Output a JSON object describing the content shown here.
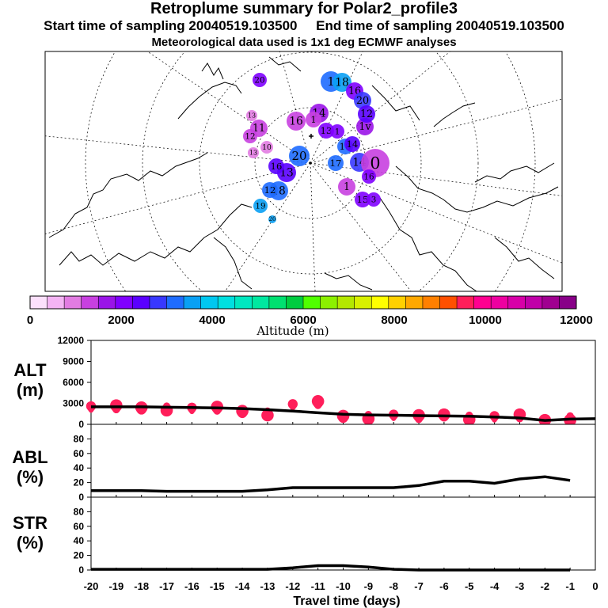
{
  "header": {
    "title": "Retroplume summary for Polar2_profile3",
    "start_label": "Start time of sampling 20040519.103500",
    "end_label": "End time of sampling 20040519.103500",
    "met_label": "Meteorological data used is 1x1 deg ECMWF analyses"
  },
  "colorbar": {
    "ticks": [
      "0",
      "2000",
      "4000",
      "6000",
      "8000",
      "10000",
      "12000"
    ],
    "label": "Altitude (m)",
    "colors": [
      "#fce0fc",
      "#f4b4f4",
      "#e27ce2",
      "#c840e0",
      "#9a14e8",
      "#8000ff",
      "#5a00ff",
      "#3838ff",
      "#1e6cff",
      "#0aa0f4",
      "#00c8f0",
      "#00e0e0",
      "#00e8c0",
      "#00e8a0",
      "#00e070",
      "#00cc40",
      "#50ff00",
      "#8cf000",
      "#b4e800",
      "#d8f000",
      "#ffff00",
      "#ffd000",
      "#ffa800",
      "#ff8000",
      "#ff5000",
      "#ff1e5a",
      "#ff0090",
      "#ee00a0",
      "#d800a8",
      "#c000a8",
      "#a00090",
      "#880088"
    ]
  },
  "map": {
    "markers": [
      {
        "label": "1",
        "alt": 3000
      },
      {
        "label": "18",
        "alt": 3500
      },
      {
        "label": "16",
        "alt": 2200
      },
      {
        "label": "20",
        "alt": 2700
      },
      {
        "label": "20",
        "alt": 2000
      },
      {
        "label": "14",
        "alt": 1500
      },
      {
        "label": "1v",
        "alt": 1800
      },
      {
        "label": "12",
        "alt": 2400
      },
      {
        "label": "16",
        "alt": 1200
      },
      {
        "label": "1",
        "alt": 1300
      },
      {
        "label": "11",
        "alt": 1400
      },
      {
        "label": "12",
        "alt": 1200
      },
      {
        "label": "13",
        "alt": 900
      },
      {
        "label": "10",
        "alt": 800
      },
      {
        "label": "13",
        "alt": 1100
      },
      {
        "label": "20",
        "alt": 3200
      },
      {
        "label": "17",
        "alt": 3000
      },
      {
        "label": "13",
        "alt": 2400
      },
      {
        "label": "16",
        "alt": 2600
      },
      {
        "label": "18",
        "alt": 3000
      },
      {
        "label": "14",
        "alt": 2800
      },
      {
        "label": "0",
        "alt": 1200
      },
      {
        "label": "1",
        "alt": 1300
      },
      {
        "label": "16",
        "alt": 2000
      },
      {
        "label": "15",
        "alt": 2200
      },
      {
        "label": "3",
        "alt": 2100
      },
      {
        "label": "18",
        "alt": 3000
      },
      {
        "label": "12",
        "alt": 3200
      },
      {
        "label": "19",
        "alt": 3400
      },
      {
        "label": "20",
        "alt": 3600
      },
      {
        "label": "13",
        "alt": 2200
      },
      {
        "label": "14",
        "alt": 2500
      },
      {
        "label": "1",
        "alt": 2000
      }
    ]
  },
  "panels": {
    "alt_label": "ALT",
    "alt_unit": "(m)",
    "abl_label": "ABL",
    "abl_unit": "(%)",
    "str_label": "STR",
    "str_unit": "(%)"
  },
  "chart_data": [
    {
      "type": "line",
      "title": "ALT",
      "ylabel": "(m)",
      "ylim": [
        0,
        12000
      ],
      "yticks": [
        "0",
        "3000",
        "6000",
        "9000",
        "12000"
      ],
      "xlim": [
        -20,
        0
      ],
      "x": [
        -20,
        -19,
        -18,
        -17,
        -16,
        -15,
        -14,
        -13,
        -12,
        -11,
        -10,
        -9,
        -8,
        -7,
        -6,
        -5,
        -4,
        -3,
        -2,
        -1,
        0
      ],
      "series": [
        {
          "name": "median altitude",
          "values": [
            2500,
            2500,
            2500,
            2450,
            2400,
            2350,
            2250,
            2100,
            1900,
            1650,
            1450,
            1350,
            1300,
            1250,
            1200,
            1150,
            1050,
            900,
            550,
            750,
            800
          ]
        }
      ],
      "scatter": [
        {
          "x": -20,
          "y": 2300
        },
        {
          "x": -19,
          "y": 2400
        },
        {
          "x": -18,
          "y": 2400
        },
        {
          "x": -17,
          "y": 2300
        },
        {
          "x": -16,
          "y": 2100
        },
        {
          "x": -15,
          "y": 2200
        },
        {
          "x": -14,
          "y": 1900
        },
        {
          "x": -13,
          "y": 1600
        },
        {
          "x": -12,
          "y": 2600
        },
        {
          "x": -11,
          "y": 3000
        },
        {
          "x": -10,
          "y": 1200
        },
        {
          "x": -9,
          "y": 1100
        },
        {
          "x": -8,
          "y": 1100
        },
        {
          "x": -7,
          "y": 1000
        },
        {
          "x": -6,
          "y": 1400
        },
        {
          "x": -5,
          "y": 1000
        },
        {
          "x": -4,
          "y": 900
        },
        {
          "x": -3,
          "y": 1100
        },
        {
          "x": -2,
          "y": 600
        },
        {
          "x": -1,
          "y": 900
        }
      ]
    },
    {
      "type": "line",
      "title": "ABL",
      "ylabel": "(%)",
      "ylim": [
        0,
        100
      ],
      "yticks": [
        "0",
        "20",
        "40",
        "60",
        "80"
      ],
      "xlim": [
        -20,
        0
      ],
      "x": [
        -20,
        -19,
        -18,
        -17,
        -16,
        -15,
        -14,
        -13,
        -12,
        -11,
        -10,
        -9,
        -8,
        -7,
        -6,
        -5,
        -4,
        -3,
        -2,
        -1
      ],
      "series": [
        {
          "name": "ABL fraction",
          "values": [
            9,
            9,
            9,
            8,
            8,
            8,
            8,
            10,
            13,
            13,
            13,
            13,
            13,
            16,
            22,
            22,
            19,
            25,
            28,
            23
          ]
        }
      ]
    },
    {
      "type": "line",
      "title": "STR",
      "ylabel": "(%)",
      "ylim": [
        0,
        100
      ],
      "yticks": [
        "0",
        "20",
        "40",
        "60",
        "80"
      ],
      "xlim": [
        -20,
        0
      ],
      "x": [
        -20,
        -19,
        -18,
        -17,
        -16,
        -15,
        -14,
        -13,
        -12,
        -11,
        -10,
        -9,
        -8,
        -7,
        -6,
        -5,
        -4,
        -3,
        -2,
        -1
      ],
      "series": [
        {
          "name": "stratosphere fraction",
          "values": [
            1,
            1,
            1,
            1,
            1,
            1,
            1,
            1,
            3,
            6,
            6,
            4,
            1,
            0,
            0,
            0,
            0,
            0,
            0,
            0
          ]
        }
      ]
    }
  ],
  "xaxis": {
    "ticks": [
      "-20",
      "-19",
      "-18",
      "-17",
      "-16",
      "-15",
      "-14",
      "-13",
      "-12",
      "-11",
      "-10",
      "-9",
      "-8",
      "-7",
      "-6",
      "-5",
      "-4",
      "-3",
      "-2",
      "-1",
      "0"
    ],
    "label": "Travel time (days)"
  }
}
